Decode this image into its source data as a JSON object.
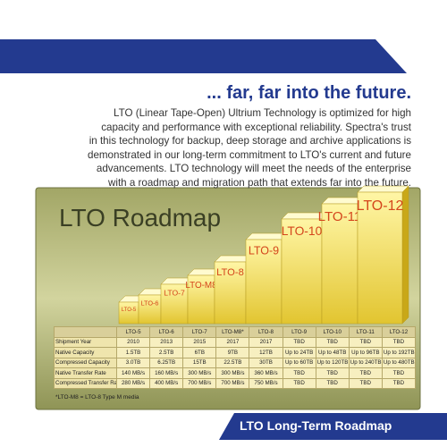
{
  "header": {
    "headline": "... far, far into the future.",
    "body_lines": [
      "LTO (Linear Tape-Open) Ultrium Technology is optimized for high",
      "capacity and performance with exceptional reliability. Spectra's trust",
      "in this technology for backup, deep storage and archive applications is",
      "demonstrated in our long-term commitment to LTO's current and future",
      "advancements. LTO technology will meet the needs of the enterprise",
      "with a roadmap and migration path that extends far into the future."
    ]
  },
  "roadmap": {
    "title": "LTO Roadmap",
    "blocks": [
      "LTO-5",
      "LTO-6",
      "LTO-7",
      "LTO-M8",
      "LTO-8",
      "LTO-9",
      "LTO-10",
      "LTO-11",
      "LTO-12"
    ]
  },
  "table": {
    "columns": [
      "LTO-5",
      "LTO-6",
      "LTO-7",
      "LTO-M8*",
      "LTO-8",
      "LTO-9",
      "LTO-10",
      "LTO-11",
      "LTO-12"
    ],
    "rows": [
      [
        "Shipment Year",
        "2010",
        "2013",
        "2015",
        "2017",
        "2017",
        "TBD",
        "TBD",
        "TBD",
        "TBD"
      ],
      [
        "Native Capacity",
        "1.5TB",
        "2.5TB",
        "6TB",
        "9TB",
        "12TB",
        "Up to 24TB",
        "Up to 48TB",
        "Up to 96TB",
        "Up to 192TB"
      ],
      [
        "Compressed Capacity",
        "3.0TB",
        "6.25TB",
        "15TB",
        "22.5TB",
        "30TB",
        "Up to 60TB",
        "Up to 120TB",
        "Up to 240TB",
        "Up to 480TB"
      ],
      [
        "Native Transfer Rate",
        "140 MB/s",
        "160 MB/s",
        "300 MB/s",
        "300 MB/s",
        "360 MB/s",
        "TBD",
        "TBD",
        "TBD",
        "TBD"
      ],
      [
        "Compressed Transfer Rate",
        "280 MB/s",
        "400 MB/s",
        "700 MB/s",
        "700 MB/s",
        "750 MB/s",
        "TBD",
        "TBD",
        "TBD",
        "TBD"
      ]
    ],
    "footnote": "*LTO-M8 = LTO-8 Type M media"
  },
  "footer": {
    "banner": "LTO Long-Term Roadmap"
  }
}
